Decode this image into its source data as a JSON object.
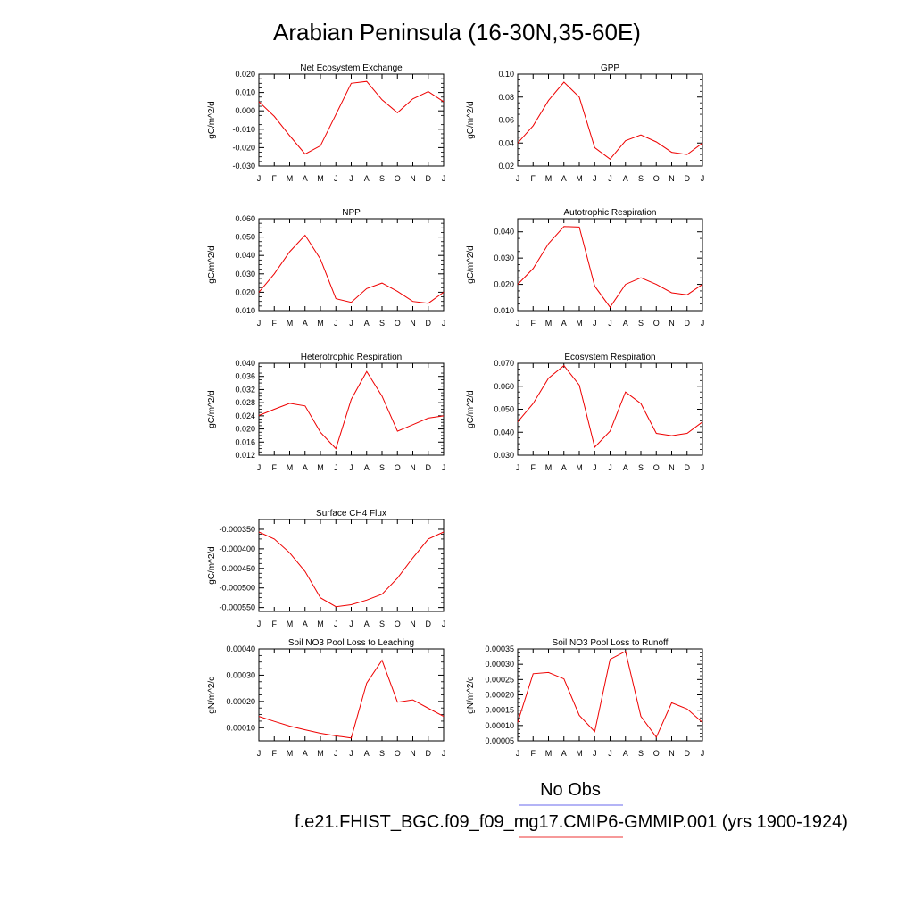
{
  "title": "Arabian Peninsula (16-30N,35-60E)",
  "legend": {
    "obs_label": "No Obs",
    "obs_color": "#6a6aee",
    "model_label": "f.e21.FHIST_BGC.f09_f09_mg17.CMIP6-GMMIP.001 (yrs 1900-1924)",
    "model_color": "#ee3333"
  },
  "chart_data": [
    {
      "type": "line",
      "title": "Net Ecosystem Exchange",
      "ylabel": "gC/m^2/d",
      "x": [
        "J",
        "F",
        "M",
        "A",
        "M",
        "J",
        "J",
        "A",
        "S",
        "O",
        "N",
        "D",
        "J"
      ],
      "ylim": [
        -0.03,
        0.02
      ],
      "yticks": [
        "0.020",
        "0.010",
        "0.000",
        "-0.010",
        "-0.020",
        "-0.030"
      ],
      "series": [
        {
          "color": "#ee0000",
          "values": [
            0.005,
            -0.003,
            -0.0135,
            -0.0235,
            -0.019,
            -0.002,
            0.015,
            0.016,
            0.006,
            -0.001,
            0.0065,
            0.0105,
            0.005
          ]
        }
      ]
    },
    {
      "type": "line",
      "title": "GPP",
      "ylabel": "gC/m^2/d",
      "x": [
        "J",
        "F",
        "M",
        "A",
        "M",
        "J",
        "J",
        "A",
        "S",
        "O",
        "N",
        "D",
        "J"
      ],
      "ylim": [
        0.02,
        0.1
      ],
      "yticks": [
        "0.10",
        "0.08",
        "0.06",
        "0.04",
        "0.02"
      ],
      "series": [
        {
          "color": "#ee0000",
          "values": [
            0.04,
            0.055,
            0.077,
            0.093,
            0.08,
            0.036,
            0.026,
            0.042,
            0.047,
            0.041,
            0.032,
            0.03,
            0.04
          ]
        }
      ]
    },
    {
      "type": "line",
      "title": "NPP",
      "ylabel": "gC/m^2/d",
      "x": [
        "J",
        "F",
        "M",
        "A",
        "M",
        "J",
        "J",
        "A",
        "S",
        "O",
        "N",
        "D",
        "J"
      ],
      "ylim": [
        0.01,
        0.06
      ],
      "yticks": [
        "0.060",
        "0.050",
        "0.040",
        "0.030",
        "0.020",
        "0.010"
      ],
      "series": [
        {
          "color": "#ee0000",
          "values": [
            0.02,
            0.03,
            0.042,
            0.051,
            0.038,
            0.0165,
            0.0145,
            0.022,
            0.025,
            0.0205,
            0.015,
            0.014,
            0.02
          ]
        }
      ]
    },
    {
      "type": "line",
      "title": "Autotrophic Respiration",
      "ylabel": "gC/m^2/d",
      "x": [
        "J",
        "F",
        "M",
        "A",
        "M",
        "J",
        "J",
        "A",
        "S",
        "O",
        "N",
        "D",
        "J"
      ],
      "ylim": [
        0.01,
        0.045
      ],
      "yticks": [
        "0.040",
        "0.030",
        "0.020",
        "0.010"
      ],
      "series": [
        {
          "color": "#ee0000",
          "values": [
            0.02,
            0.026,
            0.0355,
            0.042,
            0.0418,
            0.0193,
            0.0113,
            0.02,
            0.0225,
            0.02,
            0.0168,
            0.016,
            0.02
          ]
        }
      ]
    },
    {
      "type": "line",
      "title": "Heterotrophic Respiration",
      "ylabel": "gC/m^2/d",
      "x": [
        "J",
        "F",
        "M",
        "A",
        "M",
        "J",
        "J",
        "A",
        "S",
        "O",
        "N",
        "D",
        "J"
      ],
      "ylim": [
        0.012,
        0.04
      ],
      "yticks": [
        "0.040",
        "0.036",
        "0.032",
        "0.028",
        "0.024",
        "0.020",
        "0.016",
        "0.012"
      ],
      "series": [
        {
          "color": "#ee0000",
          "values": [
            0.0241,
            0.026,
            0.0278,
            0.027,
            0.019,
            0.014,
            0.029,
            0.0375,
            0.03,
            0.0193,
            0.0213,
            0.0233,
            0.024
          ]
        }
      ]
    },
    {
      "type": "line",
      "title": "Ecosystem Respiration",
      "ylabel": "gC/m^2/d",
      "x": [
        "J",
        "F",
        "M",
        "A",
        "M",
        "J",
        "J",
        "A",
        "S",
        "O",
        "N",
        "D",
        "J"
      ],
      "ylim": [
        0.03,
        0.07
      ],
      "yticks": [
        "0.070",
        "0.060",
        "0.050",
        "0.040",
        "0.030"
      ],
      "series": [
        {
          "color": "#ee0000",
          "values": [
            0.0445,
            0.0525,
            0.0635,
            0.069,
            0.0605,
            0.0335,
            0.0405,
            0.0575,
            0.0525,
            0.0395,
            0.0385,
            0.0395,
            0.0445
          ]
        }
      ]
    },
    {
      "type": "line",
      "title": "Surface CH4 Flux",
      "ylabel": "gC/m^2/d",
      "x": [
        "J",
        "F",
        "M",
        "A",
        "M",
        "J",
        "J",
        "A",
        "S",
        "O",
        "N",
        "D",
        "J"
      ],
      "ylim": [
        -0.00056,
        -0.000325
      ],
      "yticks": [
        "-0.000350",
        "-0.000400",
        "-0.000450",
        "-0.000500",
        "-0.000550"
      ],
      "series": [
        {
          "color": "#ee0000",
          "values": [
            -0.000357,
            -0.000375,
            -0.00041,
            -0.000458,
            -0.000525,
            -0.000548,
            -0.000543,
            -0.000531,
            -0.000516,
            -0.000475,
            -0.000423,
            -0.000375,
            -0.000357
          ]
        }
      ]
    },
    {
      "type": "line",
      "title": "Soil NO3 Pool Loss to Leaching",
      "ylabel": "gN/m^2/d",
      "x": [
        "J",
        "F",
        "M",
        "A",
        "M",
        "J",
        "J",
        "A",
        "S",
        "O",
        "N",
        "D",
        "J"
      ],
      "ylim": [
        5e-05,
        0.0004
      ],
      "yticks": [
        "0.00040",
        "0.00030",
        "0.00020",
        "0.00010"
      ],
      "series": [
        {
          "color": "#ee0000",
          "values": [
            0.000143,
            0.000124,
            0.000106,
            9.2e-05,
            7.9e-05,
            6.9e-05,
            6.1e-05,
            0.00027,
            0.000357,
            0.000197,
            0.000206,
            0.000174,
            0.000143
          ]
        }
      ]
    },
    {
      "type": "line",
      "title": "Soil NO3 Pool Loss to Runoff",
      "ylabel": "gN/m^2/d",
      "x": [
        "J",
        "F",
        "M",
        "A",
        "M",
        "J",
        "J",
        "A",
        "S",
        "O",
        "N",
        "D",
        "J"
      ],
      "ylim": [
        5e-05,
        0.00035
      ],
      "yticks": [
        "0.00035",
        "0.00030",
        "0.00025",
        "0.00020",
        "0.00015",
        "0.00010",
        "0.00005"
      ],
      "series": [
        {
          "color": "#ee0000",
          "values": [
            0.00011,
            0.000269,
            0.000273,
            0.000252,
            0.000133,
            8e-05,
            0.000316,
            0.000342,
            0.00013,
            6.2e-05,
            0.000174,
            0.000154,
            0.00011
          ]
        }
      ]
    }
  ]
}
